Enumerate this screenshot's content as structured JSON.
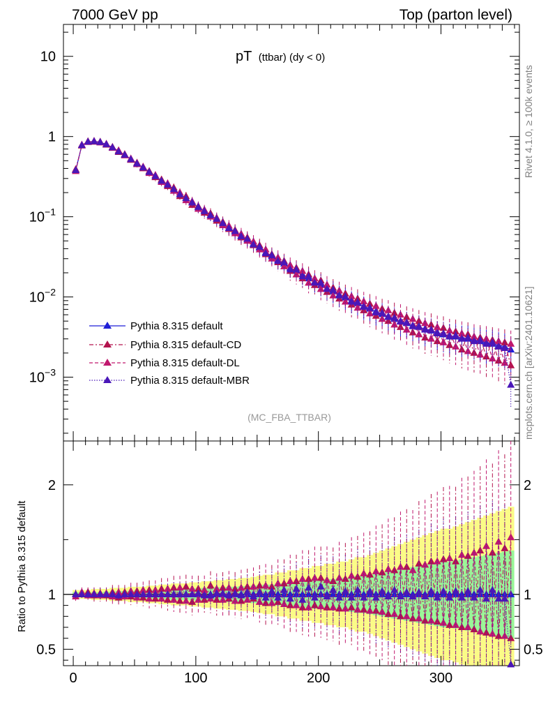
{
  "header": {
    "left": "7000 GeV pp",
    "right": "Top (parton level)"
  },
  "side_label_1": "Rivet 4.1.0, ≥ 100k events",
  "side_label_2": "mcplots.cern.ch [arXiv:2401.10621]",
  "top_plot": {
    "title_main": "pT",
    "title_sub": "(ttbar) (dy < 0)",
    "watermark": "(MC_FBA_TTBAR)",
    "y_ticks": [
      {
        "base": "10",
        "exp": "",
        "value": 10
      },
      {
        "base": "1",
        "exp": "",
        "value": 1
      },
      {
        "base": "10",
        "exp": "−1",
        "value": 0.1
      },
      {
        "base": "10",
        "exp": "−2",
        "value": 0.01
      },
      {
        "base": "10",
        "exp": "−3",
        "value": 0.001
      }
    ]
  },
  "ratio_plot": {
    "ylabel": "Ratio to Pythia 8.315 default",
    "y_ticks_left": [
      "2",
      "1",
      "0.5"
    ],
    "y_ticks_right": [
      "2",
      "1",
      "0.5"
    ],
    "x_ticks": [
      "0",
      "100",
      "200",
      "300"
    ]
  },
  "colors": {
    "default": "#1f1fd6",
    "cd": "#b3134d",
    "dl": "#c0186e",
    "mbr": "#4a17b8",
    "band_green": "#98f598",
    "band_yellow": "#fbfb87"
  },
  "legend": [
    {
      "label": "Pythia 8.315 default",
      "style": "solid"
    },
    {
      "label": "Pythia 8.315 default-CD",
      "style": "dashdot"
    },
    {
      "label": "Pythia 8.315 default-DL",
      "style": "dashed"
    },
    {
      "label": "Pythia 8.315 default-MBR",
      "style": "dotted"
    }
  ],
  "chart_data": [
    {
      "type": "line",
      "title": "pT (ttbar) (dy < 0)",
      "xlabel": "",
      "ylabel": "",
      "yscale": "log",
      "xlim": [
        -8,
        364
      ],
      "ylim": [
        0.00016,
        25
      ],
      "x": [
        2,
        7,
        12,
        17,
        22,
        27,
        32,
        37,
        42,
        47,
        52,
        57,
        62,
        67,
        72,
        77,
        82,
        87,
        92,
        97,
        102,
        107,
        112,
        117,
        122,
        127,
        132,
        137,
        142,
        147,
        152,
        157,
        162,
        167,
        172,
        177,
        182,
        187,
        192,
        197,
        202,
        207,
        212,
        217,
        222,
        227,
        232,
        237,
        242,
        247,
        252,
        257,
        262,
        267,
        272,
        277,
        282,
        287,
        292,
        297,
        302,
        307,
        312,
        317,
        322,
        327,
        332,
        337,
        342,
        347,
        352,
        357
      ],
      "series": [
        {
          "name": "Pythia 8.315 default",
          "values": [
            0.38,
            0.78,
            0.86,
            0.87,
            0.85,
            0.8,
            0.73,
            0.66,
            0.59,
            0.52,
            0.46,
            0.41,
            0.36,
            0.32,
            0.28,
            0.25,
            0.22,
            0.19,
            0.17,
            0.15,
            0.13,
            0.118,
            0.105,
            0.093,
            0.082,
            0.073,
            0.065,
            0.058,
            0.052,
            0.046,
            0.041,
            0.036,
            0.032,
            0.029,
            0.026,
            0.023,
            0.021,
            0.019,
            0.017,
            0.0155,
            0.014,
            0.0128,
            0.0117,
            0.0107,
            0.0098,
            0.009,
            0.0083,
            0.0077,
            0.0071,
            0.0066,
            0.0061,
            0.0057,
            0.0053,
            0.005,
            0.0047,
            0.0044,
            0.0042,
            0.004,
            0.0038,
            0.0036,
            0.0034,
            0.0033,
            0.0032,
            0.0031,
            0.003,
            0.0029,
            0.0028,
            0.0027,
            0.0026,
            0.0025,
            0.0024,
            0.0022
          ]
        },
        {
          "name": "Pythia 8.315 default-CD",
          "values": [
            0.39,
            0.77,
            0.87,
            0.86,
            0.86,
            0.79,
            0.74,
            0.64,
            0.6,
            0.51,
            0.47,
            0.4,
            0.37,
            0.31,
            0.29,
            0.24,
            0.23,
            0.18,
            0.18,
            0.14,
            0.135,
            0.112,
            0.11,
            0.089,
            0.086,
            0.07,
            0.068,
            0.055,
            0.055,
            0.044,
            0.044,
            0.034,
            0.034,
            0.027,
            0.028,
            0.021,
            0.023,
            0.017,
            0.019,
            0.014,
            0.016,
            0.0115,
            0.013,
            0.0095,
            0.011,
            0.008,
            0.0095,
            0.0068,
            0.0082,
            0.0058,
            0.0071,
            0.005,
            0.0063,
            0.0042,
            0.0056,
            0.0036,
            0.005,
            0.0031,
            0.0045,
            0.0028,
            0.0041,
            0.0025,
            0.0037,
            0.0022,
            0.0034,
            0.002,
            0.0031,
            0.0018,
            0.0029,
            0.0016,
            0.0027,
            0.0014
          ]
        },
        {
          "name": "Pythia 8.315 default-DL",
          "values": [
            0.37,
            0.79,
            0.85,
            0.88,
            0.84,
            0.81,
            0.72,
            0.67,
            0.58,
            0.53,
            0.45,
            0.42,
            0.35,
            0.33,
            0.27,
            0.26,
            0.21,
            0.2,
            0.16,
            0.155,
            0.125,
            0.122,
            0.1,
            0.097,
            0.078,
            0.077,
            0.062,
            0.061,
            0.05,
            0.049,
            0.039,
            0.039,
            0.03,
            0.031,
            0.024,
            0.025,
            0.019,
            0.021,
            0.015,
            0.017,
            0.0125,
            0.0142,
            0.0104,
            0.012,
            0.0087,
            0.0102,
            0.0073,
            0.0088,
            0.0062,
            0.0077,
            0.0053,
            0.0068,
            0.0045,
            0.006,
            0.0039,
            0.0053,
            0.0034,
            0.0047,
            0.003,
            0.0042,
            0.0027,
            0.0038,
            0.0024,
            0.0035,
            0.0021,
            0.0032,
            0.0019,
            0.003,
            0.0017,
            0.0028,
            0.0015,
            0.0026
          ]
        },
        {
          "name": "Pythia 8.315 default-MBR",
          "values": [
            0.38,
            0.78,
            0.86,
            0.87,
            0.85,
            0.8,
            0.73,
            0.65,
            0.59,
            0.52,
            0.46,
            0.41,
            0.36,
            0.32,
            0.28,
            0.25,
            0.22,
            0.19,
            0.17,
            0.15,
            0.132,
            0.117,
            0.104,
            0.094,
            0.083,
            0.072,
            0.066,
            0.057,
            0.053,
            0.045,
            0.042,
            0.035,
            0.033,
            0.028,
            0.027,
            0.022,
            0.022,
            0.018,
            0.018,
            0.015,
            0.015,
            0.0125,
            0.0122,
            0.0104,
            0.0101,
            0.0087,
            0.0086,
            0.0075,
            0.0073,
            0.0064,
            0.0063,
            0.0056,
            0.0055,
            0.0049,
            0.0048,
            0.0043,
            0.0043,
            0.0039,
            0.0039,
            0.0035,
            0.0035,
            0.0032,
            0.0033,
            0.003,
            0.0031,
            0.0028,
            0.0029,
            0.0026,
            0.0027,
            0.0024,
            0.0023,
            0.0008
          ]
        }
      ]
    },
    {
      "type": "line",
      "title": "",
      "xlabel": "",
      "ylabel": "Ratio to Pythia 8.315 default",
      "xlim": [
        -8,
        364
      ],
      "ylim": [
        0.35,
        2.4
      ],
      "x": [
        2,
        7,
        12,
        17,
        22,
        27,
        32,
        37,
        42,
        47,
        52,
        57,
        62,
        67,
        72,
        77,
        82,
        87,
        92,
        97,
        102,
        107,
        112,
        117,
        122,
        127,
        132,
        137,
        142,
        147,
        152,
        157,
        162,
        167,
        172,
        177,
        182,
        187,
        192,
        197,
        202,
        207,
        212,
        217,
        222,
        227,
        232,
        237,
        242,
        247,
        252,
        257,
        262,
        267,
        272,
        277,
        282,
        287,
        292,
        297,
        302,
        307,
        312,
        317,
        322,
        327,
        332,
        337,
        342,
        347,
        352,
        357
      ],
      "band_green_halfwidth": [
        0.02,
        0.02,
        0.02,
        0.02,
        0.02,
        0.025,
        0.025,
        0.03,
        0.03,
        0.03,
        0.035,
        0.035,
        0.04,
        0.04,
        0.045,
        0.045,
        0.05,
        0.05,
        0.05,
        0.055,
        0.055,
        0.06,
        0.06,
        0.065,
        0.065,
        0.07,
        0.07,
        0.075,
        0.075,
        0.08,
        0.085,
        0.09,
        0.09,
        0.1,
        0.1,
        0.11,
        0.11,
        0.12,
        0.12,
        0.13,
        0.13,
        0.14,
        0.14,
        0.15,
        0.15,
        0.16,
        0.17,
        0.17,
        0.18,
        0.19,
        0.2,
        0.21,
        0.22,
        0.23,
        0.24,
        0.25,
        0.26,
        0.27,
        0.28,
        0.29,
        0.3,
        0.3,
        0.31,
        0.32,
        0.33,
        0.34,
        0.35,
        0.36,
        0.37,
        0.38,
        0.39,
        0.4
      ],
      "band_yellow_halfwidth": [
        0.04,
        0.04,
        0.04,
        0.05,
        0.05,
        0.05,
        0.06,
        0.06,
        0.06,
        0.07,
        0.07,
        0.07,
        0.08,
        0.08,
        0.09,
        0.09,
        0.1,
        0.1,
        0.1,
        0.11,
        0.11,
        0.12,
        0.12,
        0.13,
        0.13,
        0.14,
        0.14,
        0.15,
        0.15,
        0.16,
        0.17,
        0.18,
        0.18,
        0.2,
        0.2,
        0.22,
        0.22,
        0.24,
        0.24,
        0.26,
        0.26,
        0.28,
        0.28,
        0.3,
        0.3,
        0.32,
        0.34,
        0.34,
        0.36,
        0.38,
        0.4,
        0.42,
        0.44,
        0.46,
        0.48,
        0.5,
        0.52,
        0.54,
        0.56,
        0.58,
        0.6,
        0.6,
        0.62,
        0.64,
        0.66,
        0.68,
        0.7,
        0.72,
        0.74,
        0.76,
        0.78,
        0.8
      ],
      "series": [
        {
          "name": "Pythia 8.315 default-CD",
          "values": [
            1.0,
            1.0,
            1.02,
            0.99,
            1.01,
            0.99,
            1.02,
            0.97,
            1.02,
            0.98,
            1.03,
            0.97,
            1.04,
            0.96,
            1.05,
            0.95,
            1.06,
            0.94,
            1.07,
            0.93,
            1.05,
            0.95,
            1.08,
            0.95,
            1.06,
            0.96,
            1.05,
            0.94,
            1.07,
            0.96,
            1.08,
            0.92,
            1.07,
            0.93,
            1.1,
            0.9,
            1.12,
            0.88,
            1.14,
            0.9,
            1.15,
            0.88,
            1.12,
            0.87,
            1.14,
            0.88,
            1.16,
            0.86,
            1.18,
            0.85,
            1.2,
            0.82,
            1.22,
            0.8,
            1.25,
            0.78,
            1.28,
            0.76,
            1.3,
            0.75,
            1.32,
            0.72,
            1.3,
            0.7,
            1.35,
            0.68,
            1.4,
            0.65,
            1.38,
            0.62,
            1.42,
            0.6
          ]
        },
        {
          "name": "Pythia 8.315 default-DL",
          "values": [
            0.98,
            1.02,
            0.99,
            1.01,
            0.99,
            1.01,
            0.98,
            1.02,
            0.98,
            1.03,
            0.97,
            1.04,
            0.96,
            1.04,
            0.96,
            1.05,
            0.95,
            1.06,
            0.94,
            1.05,
            0.95,
            1.04,
            0.96,
            1.05,
            0.95,
            1.06,
            0.94,
            1.06,
            0.95,
            1.07,
            0.93,
            1.08,
            0.92,
            1.1,
            0.91,
            1.12,
            0.9,
            1.14,
            0.88,
            1.15,
            0.89,
            1.13,
            0.88,
            1.15,
            0.87,
            1.17,
            0.86,
            1.19,
            0.85,
            1.21,
            0.84,
            1.23,
            0.82,
            1.25,
            0.8,
            1.22,
            0.78,
            1.27,
            0.76,
            1.3,
            0.74,
            1.33,
            0.72,
            1.36,
            0.7,
            1.38,
            0.66,
            1.44,
            0.64,
            1.48,
            0.62,
            1.52
          ]
        },
        {
          "name": "Pythia 8.315 default-MBR",
          "values": [
            1.0,
            1.0,
            1.0,
            1.0,
            1.0,
            1.0,
            1.0,
            0.99,
            1.0,
            1.0,
            1.0,
            1.0,
            1.0,
            1.0,
            1.0,
            1.0,
            1.0,
            1.0,
            1.0,
            1.0,
            1.01,
            0.99,
            0.99,
            1.01,
            1.01,
            0.99,
            1.01,
            0.99,
            1.02,
            0.98,
            1.02,
            0.97,
            1.03,
            0.97,
            1.04,
            0.96,
            1.05,
            0.95,
            1.06,
            0.97,
            1.07,
            0.98,
            1.04,
            0.97,
            1.03,
            0.97,
            1.04,
            0.97,
            1.03,
            0.97,
            1.03,
            0.98,
            1.04,
            0.98,
            1.02,
            0.98,
            1.02,
            0.98,
            1.03,
            0.97,
            1.03,
            0.97,
            1.03,
            0.97,
            1.03,
            0.97,
            1.04,
            0.96,
            1.04,
            0.96,
            0.96,
            0.36
          ]
        }
      ]
    }
  ]
}
